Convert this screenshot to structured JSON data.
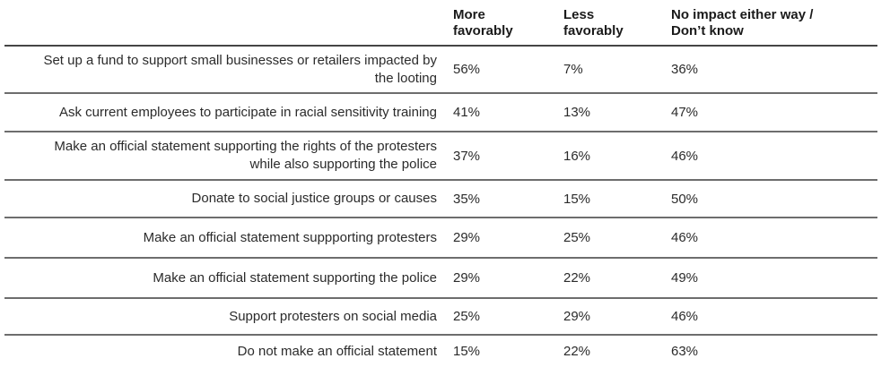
{
  "table": {
    "columns": {
      "more": "More\nfavorably",
      "less": "Less\nfavorably",
      "no_impact": "No impact either way /\nDon’t know"
    },
    "rows": [
      {
        "label": "Set up a fund to support small businesses or retailers impacted by\nthe looting",
        "more": "56%",
        "less": "7%",
        "no_impact": "36%"
      },
      {
        "label": "Ask current employees to participate in racial sensitivity training",
        "more": "41%",
        "less": "13%",
        "no_impact": "47%"
      },
      {
        "label": "Make an official statement supporting the rights of the protesters\nwhile also supporting the police",
        "more": "37%",
        "less": "16%",
        "no_impact": "46%"
      },
      {
        "label": "Donate to social justice groups or causes",
        "more": "35%",
        "less": "15%",
        "no_impact": "50%"
      },
      {
        "label": "Make an official statement suppporting protesters",
        "more": "29%",
        "less": "25%",
        "no_impact": "46%"
      },
      {
        "label": "Make an official statement supporting the police",
        "more": "29%",
        "less": "22%",
        "no_impact": "49%"
      },
      {
        "label": "Support protesters on social media",
        "more": "25%",
        "less": "29%",
        "no_impact": "46%"
      },
      {
        "label": "Do not make an official statement",
        "more": "15%",
        "less": "22%",
        "no_impact": "63%"
      }
    ]
  },
  "chart_data": {
    "type": "table",
    "title": "",
    "unit": "%",
    "categories": [
      "Set up a fund to support small businesses or retailers impacted by the looting",
      "Ask current employees to participate in racial sensitivity training",
      "Make an official statement supporting the rights of the protesters while also supporting the police",
      "Donate to social justice groups or causes",
      "Make an official statement suppporting protesters",
      "Make an official statement supporting the police",
      "Support protesters on social media",
      "Do not make an official statement"
    ],
    "series": [
      {
        "name": "More favorably",
        "values": [
          56,
          41,
          37,
          35,
          29,
          29,
          25,
          15
        ]
      },
      {
        "name": "Less favorably",
        "values": [
          7,
          13,
          16,
          15,
          25,
          22,
          29,
          22
        ]
      },
      {
        "name": "No impact either way / Don't know",
        "values": [
          36,
          47,
          46,
          50,
          46,
          49,
          46,
          63
        ]
      }
    ],
    "legend_position": "top",
    "grid": "horizontal-rules"
  }
}
